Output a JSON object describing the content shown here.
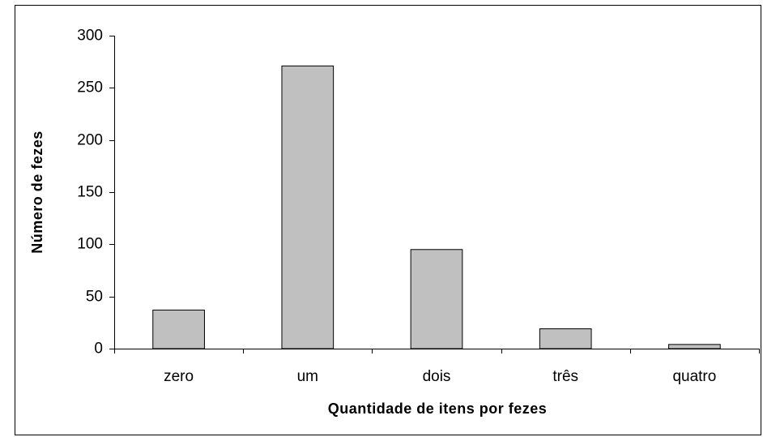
{
  "chart_data": {
    "type": "bar",
    "xlabel": "Quantidade de itens por fezes",
    "ylabel": "Número de fezes",
    "categories": [
      "zero",
      "um",
      "dois",
      "três",
      "quatro"
    ],
    "values": [
      37,
      271,
      95,
      19,
      4
    ],
    "color": "#c0c0c0",
    "ylim": [
      0,
      300
    ],
    "yticks": [
      0,
      50,
      100,
      150,
      200,
      250,
      300
    ],
    "grid": false
  }
}
